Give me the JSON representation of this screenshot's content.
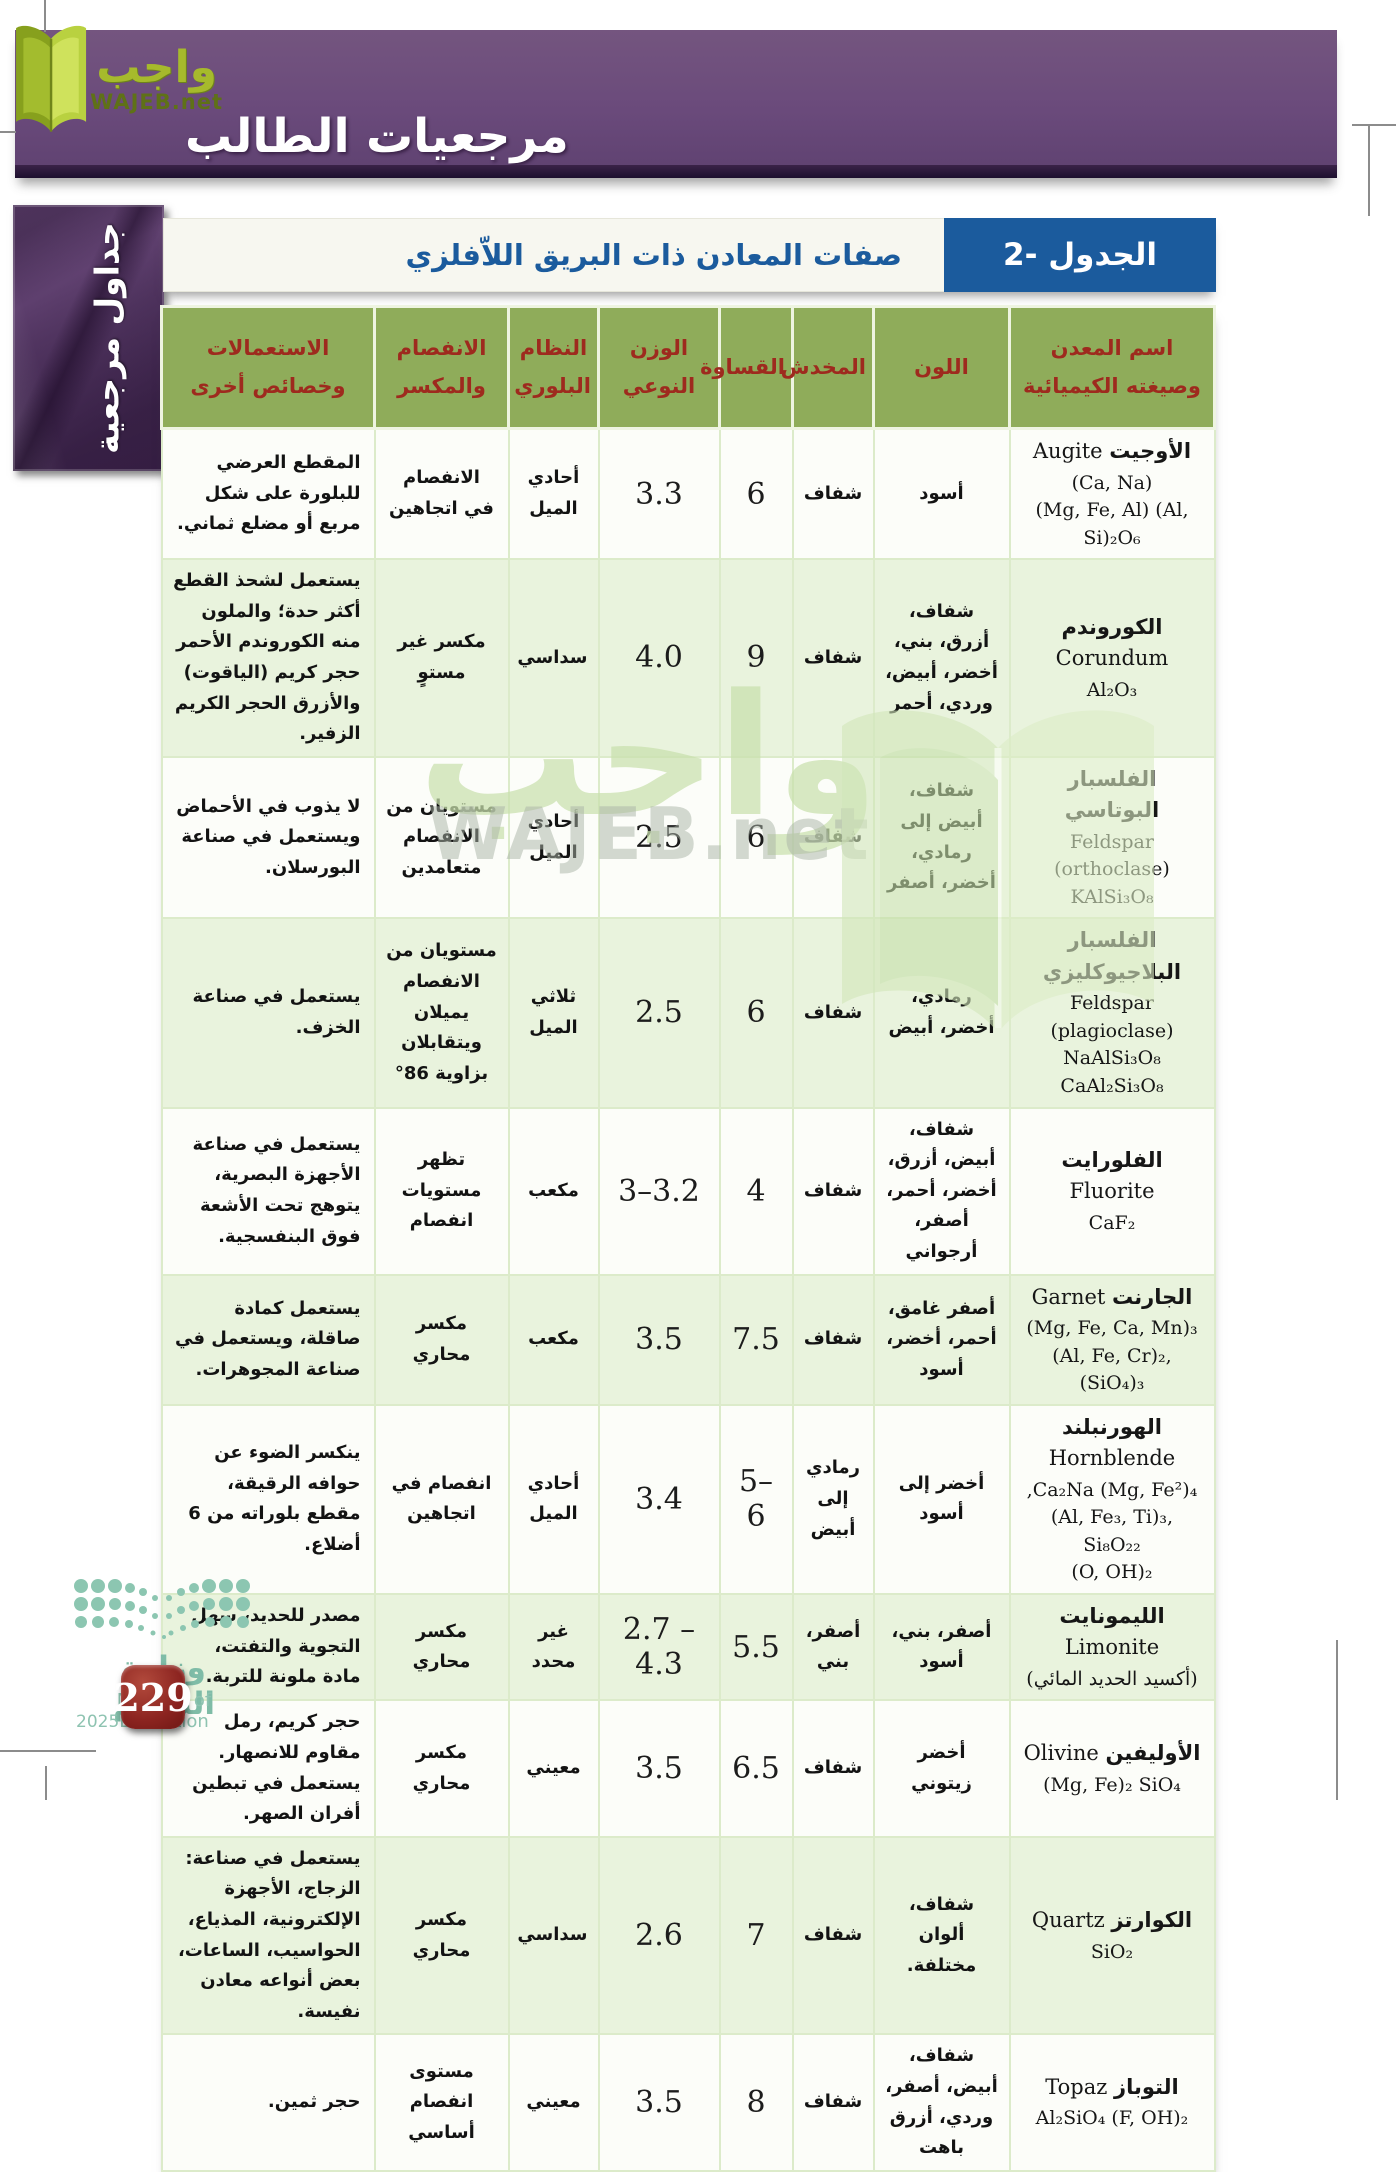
{
  "branding": {
    "wajeb_arabic": "واجب",
    "wajeb_site": "WAJEB.net",
    "watermark_arabic": "واجب",
    "watermark_site": "WAJEB.net"
  },
  "header": {
    "title": "مرجعيات الطالب"
  },
  "sidebar": {
    "label": "جداول مرجعية"
  },
  "table": {
    "label": "الجدول -2",
    "title": "صفات المعادن ذات البريق اللاّفلزي",
    "columns": [
      "اسم المعدن وصيغته الكيميائية",
      "اللون",
      "المخدش",
      "القساوة",
      "الوزن النوعي",
      "النظام البلوري",
      "الانفصام والمكسر",
      "الاستعمالات وخصائص أخرى"
    ],
    "rows": [
      {
        "name_ar": "الأوجيت",
        "name_en": "Augite",
        "formula": "(Ca, Na)\n(Mg, Fe, Al) (Al, Si)₂O₆",
        "color": "أسود",
        "streak": "شفاف",
        "hardness": "6",
        "gravity": "3.3",
        "crystal": "أحادي الميل",
        "cleavage": "الانفصام في اتجاهين",
        "uses": "المقطع العرضي للبلورة على شكل مربع أو مضلع ثماني."
      },
      {
        "name_ar": "الكوروندم",
        "name_en": "Corundum",
        "formula": "Al₂O₃",
        "color": "شفاف، أزرق، بني، أخضر، أبيض، وردي، أحمر",
        "streak": "شفاف",
        "hardness": "9",
        "gravity": "4.0",
        "crystal": "سداسي",
        "cleavage": "مكسر غير مستوٍ",
        "uses": "يستعمل لشحذ القطع أكثر حدة؛ والملون منه الكوروندم الأحمر حجر كريم (الياقوت) والأزرق الحجر الكريم الزفير."
      },
      {
        "name_ar": "الفلسبار البوتاسي",
        "name_en": "",
        "formula": "Feldspar\n(orthoclase)\nKAlSi₃O₈",
        "color": "شفاف، أبيض إلى رمادي، أخضر، أصفر",
        "streak": "شفاف",
        "hardness": "6",
        "gravity": "2.5",
        "crystal": "أحادي الميل",
        "cleavage": "مستويان من الانفصام متعامدين",
        "uses": "لا يذوب في الأحماض ويستعمل في صناعة البورسلان."
      },
      {
        "name_ar": "الفلسبار البلاجيوكليزي",
        "name_en": "",
        "formula": "Feldspar\n(plagioclase)\nNaAlSi₃O₈\nCaAl₂Si₃O₈",
        "color": "رمادي، أخضر، أبيض",
        "streak": "شفاف",
        "hardness": "6",
        "gravity": "2.5",
        "crystal": "ثلاثي الميل",
        "cleavage": "مستويان من الانفصام يميلان ويتقابلان بزاوية 86°",
        "uses": "يستعمل في صناعة الخزف."
      },
      {
        "name_ar": "الفلورايت",
        "name_en": "Fluorite",
        "formula": "CaF₂",
        "color": "شفاف، أبيض، أزرق، أخضر، أحمر، أصفر، أرجواني",
        "streak": "شفاف",
        "hardness": "4",
        "gravity": "3–3.2",
        "crystal": "مكعب",
        "cleavage": "تظهر مستويات انفصام",
        "uses": "يستعمل في صناعة الأجهزة البصرية، يتوهج تحت الأشعة فوق البنفسجية."
      },
      {
        "name_ar": "الجارنت",
        "name_en": "Garnet",
        "formula": "(Mg, Fe, Ca, Mn)₃\n(Al, Fe, Cr)₂, (SiO₄)₃",
        "color": "أصفر غامق، أحمر، أخضر، أسود",
        "streak": "شفاف",
        "hardness": "7.5",
        "gravity": "3.5",
        "crystal": "مكعب",
        "cleavage": "مكسر محاري",
        "uses": "يستعمل كمادة صاقلة، ويستعمل في صناعة المجوهرات."
      },
      {
        "name_ar": "الهورنبلند",
        "name_en": "Hornblende",
        "formula": ",Ca₂Na (Mg, Fe²)₄\n(Al, Fe₃, Ti)₃, Si₈O₂₂\n(O, OH)₂",
        "color": "أخضر إلى أسود",
        "streak": "رمادي إلى أبيض",
        "hardness": "5–6",
        "gravity": "3.4",
        "crystal": "أحادي الميل",
        "cleavage": "انفصام في اتجاهين",
        "uses": "ينكسر الضوء عن حوافه الرقيقة، مقطع بلوراته من 6 أضلاع."
      },
      {
        "name_ar": "الليمونايت",
        "name_en": "Limonite",
        "formula": "(أكسيد الحديد المائي)",
        "color": "أصفر، بني، أسود",
        "streak": "أصفر، بني",
        "hardness": "5.5",
        "gravity": "2.7 – 4.3",
        "crystal": "غير محدد",
        "cleavage": "مكسر محاري",
        "uses": "مصدر للحديد، سهل التجوية والتفتت، مادة ملونة للتربة."
      },
      {
        "name_ar": "الأوليفين",
        "name_en": "Olivine",
        "formula": "(Mg, Fe)₂ SiO₄",
        "color": "أخضر زيتوني",
        "streak": "شفاف",
        "hardness": "6.5",
        "gravity": "3.5",
        "crystal": "معيني",
        "cleavage": "مكسر محاري",
        "uses": "حجر كريم، رمل مقاوم للانصهار. يستعمل في تبطين أفران الصهر."
      },
      {
        "name_ar": "الكوارتز",
        "name_en": "Quartz",
        "formula": "SiO₂",
        "color": "شفاف، ألوان مختلفة.",
        "streak": "شفاف",
        "hardness": "7",
        "gravity": "2.6",
        "crystal": "سداسي",
        "cleavage": "مكسر محاري",
        "uses": "يستعمل في صناعة: الزجاج، الأجهزة الإلكترونية، المذياع، الحواسيب، الساعات، بعض أنواعه معادن نفيسة."
      },
      {
        "name_ar": "التوباز",
        "name_en": "Topaz",
        "formula": "Al₂SiO₄ (F, OH)₂",
        "color": "شفاف، أبيض، أصفر، وردي، أزرق باهت",
        "streak": "شفاف",
        "hardness": "8",
        "gravity": "3.5",
        "crystal": "معيني",
        "cleavage": "مستوى انفصام أساسي",
        "uses": "حجر ثمين."
      }
    ]
  },
  "footer": {
    "ministry_ar": "وزارة التعليم",
    "ministry_en": "Ministry of Education",
    "year": "2025 - 1447",
    "page_number": "229"
  }
}
